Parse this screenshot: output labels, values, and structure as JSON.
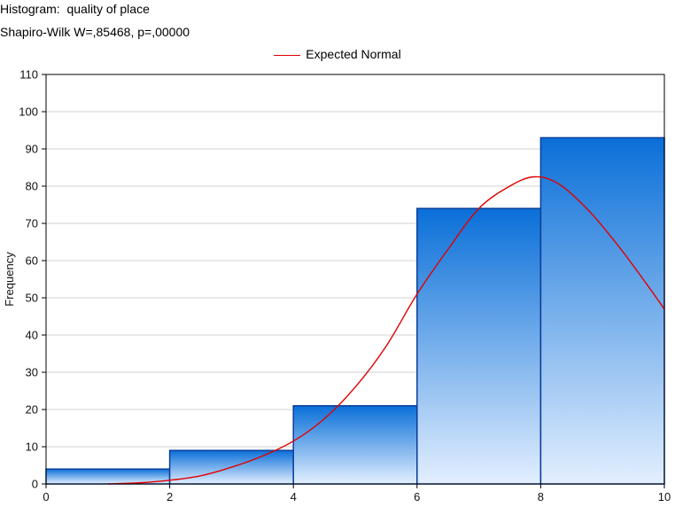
{
  "chart_data": {
    "type": "bar",
    "title_prefix": "Histogram:",
    "title_variable": "quality of place",
    "subtitle": "Shapiro-Wilk W=,85468, p=,00000",
    "xlabel": "",
    "ylabel": "Frequency",
    "legend": {
      "label": "Expected Normal",
      "placement": "top-center",
      "color": "#e00000"
    },
    "bins": [
      {
        "x0": 0,
        "x1": 2,
        "value": 4
      },
      {
        "x0": 2,
        "x1": 4,
        "value": 9
      },
      {
        "x0": 4,
        "x1": 6,
        "value": 21
      },
      {
        "x0": 6,
        "x1": 8,
        "value": 74
      },
      {
        "x0": 8,
        "x1": 10,
        "value": 93
      }
    ],
    "expected_normal": {
      "x": [
        1.0,
        1.5,
        2.0,
        2.5,
        3.0,
        3.5,
        4.0,
        4.5,
        5.0,
        5.5,
        6.0,
        6.5,
        7.0,
        7.5,
        7.9,
        8.3,
        8.8,
        9.3,
        9.7,
        10.0
      ],
      "y": [
        0,
        0.3,
        1,
        2.2,
        4.5,
        7.5,
        11.5,
        17.5,
        26,
        37,
        51,
        63,
        74,
        80,
        82.5,
        80.5,
        73,
        63,
        54,
        47
      ]
    },
    "xlim": [
      0,
      10
    ],
    "ylim": [
      0,
      110
    ],
    "xticks": [
      "0",
      "2",
      "4",
      "6",
      "8",
      "10"
    ],
    "yticks": [
      "0",
      "10",
      "20",
      "30",
      "40",
      "50",
      "60",
      "70",
      "80",
      "90",
      "100",
      "110"
    ],
    "grid": true,
    "colors": {
      "bar_top": "#0a6fd8",
      "bar_bottom": "#e3efff",
      "bar_edge": "#0b3e9a",
      "curve": "#e00000",
      "grid": "#d0d0d0"
    }
  }
}
